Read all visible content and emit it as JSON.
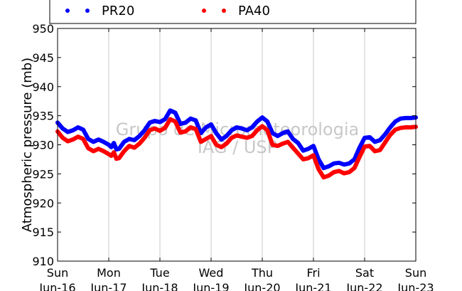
{
  "chart_data": {
    "type": "line",
    "title": "",
    "ylabel": "Atmospheric pressure (mb)",
    "xlabel": "",
    "ylim": [
      910,
      950
    ],
    "yticks": [
      910,
      915,
      920,
      925,
      930,
      935,
      940,
      945,
      950
    ],
    "xlim": [
      0,
      7
    ],
    "xtick_labels": [
      {
        "day": "Sun",
        "date": "Jun-16"
      },
      {
        "day": "Mon",
        "date": "Jun-17"
      },
      {
        "day": "Tue",
        "date": "Jun-18"
      },
      {
        "day": "Wed",
        "date": "Jun-19"
      },
      {
        "day": "Thu",
        "date": "Jun-20"
      },
      {
        "day": "Fri",
        "date": "Jun-21"
      },
      {
        "day": "Sat",
        "date": "Jun-22"
      },
      {
        "day": "Sun",
        "date": "Jun-23"
      }
    ],
    "grid": "vertical",
    "legend_position": "top",
    "watermark": [
      "Grupo de Micrometeorologia",
      "IAG / USP"
    ],
    "series": [
      {
        "name": "PR20",
        "color": "#0000ff",
        "x": [
          0.0,
          0.1,
          0.2,
          0.3,
          0.4,
          0.5,
          0.6,
          0.7,
          0.8,
          0.9,
          1.0,
          1.05,
          1.1,
          1.15,
          1.2,
          1.3,
          1.4,
          1.5,
          1.6,
          1.7,
          1.8,
          1.9,
          2.0,
          2.1,
          2.2,
          2.3,
          2.4,
          2.5,
          2.6,
          2.7,
          2.8,
          2.9,
          3.0,
          3.1,
          3.2,
          3.3,
          3.4,
          3.5,
          3.6,
          3.7,
          3.8,
          3.9,
          4.0,
          4.1,
          4.2,
          4.3,
          4.4,
          4.5,
          4.6,
          4.7,
          4.8,
          4.9,
          5.0,
          5.1,
          5.2,
          5.3,
          5.4,
          5.5,
          5.6,
          5.7,
          5.8,
          5.9,
          6.0,
          6.1,
          6.2,
          6.3,
          6.4,
          6.5,
          6.6,
          6.7,
          6.8,
          6.9,
          7.0
        ],
        "y": [
          933.8,
          932.8,
          932.2,
          932.5,
          933.0,
          932.6,
          931.0,
          930.5,
          930.9,
          930.5,
          930.0,
          929.6,
          930.3,
          929.2,
          929.3,
          930.5,
          931.0,
          930.8,
          931.5,
          932.5,
          933.8,
          934.1,
          933.9,
          934.4,
          935.9,
          935.5,
          933.6,
          933.8,
          934.5,
          934.2,
          932.0,
          933.0,
          933.5,
          932.0,
          930.9,
          931.5,
          932.5,
          933.0,
          932.8,
          932.5,
          933.0,
          934.0,
          934.7,
          934.0,
          932.0,
          931.5,
          932.0,
          932.3,
          931.0,
          930.3,
          929.0,
          929.3,
          929.8,
          927.5,
          926.0,
          926.3,
          926.8,
          926.9,
          926.6,
          926.8,
          927.5,
          929.5,
          931.2,
          931.3,
          930.5,
          930.8,
          931.8,
          933.0,
          934.0,
          934.5,
          934.6,
          934.6,
          934.7
        ]
      },
      {
        "name": "PA40",
        "color": "#ff0000",
        "x": [
          0.0,
          0.1,
          0.2,
          0.3,
          0.4,
          0.5,
          0.6,
          0.7,
          0.8,
          0.9,
          1.0,
          1.05,
          1.1,
          1.15,
          1.2,
          1.3,
          1.4,
          1.5,
          1.6,
          1.7,
          1.8,
          1.9,
          2.0,
          2.1,
          2.2,
          2.3,
          2.4,
          2.5,
          2.6,
          2.7,
          2.8,
          2.9,
          3.0,
          3.1,
          3.2,
          3.3,
          3.4,
          3.5,
          3.6,
          3.7,
          3.8,
          3.9,
          4.0,
          4.1,
          4.2,
          4.3,
          4.4,
          4.5,
          4.6,
          4.7,
          4.8,
          4.9,
          5.0,
          5.1,
          5.2,
          5.3,
          5.4,
          5.5,
          5.6,
          5.7,
          5.8,
          5.9,
          6.0,
          6.1,
          6.2,
          6.3,
          6.4,
          6.5,
          6.6,
          6.7,
          6.8,
          6.9,
          7.0
        ],
        "y": [
          932.3,
          931.2,
          930.6,
          930.9,
          931.4,
          931.0,
          929.4,
          928.9,
          929.3,
          928.9,
          928.4,
          928.1,
          928.7,
          927.6,
          927.7,
          928.9,
          929.8,
          929.5,
          930.2,
          931.2,
          932.5,
          932.8,
          932.4,
          932.9,
          934.4,
          934.0,
          932.1,
          932.3,
          933.0,
          932.7,
          930.5,
          931.0,
          931.5,
          930.0,
          929.6,
          930.2,
          931.2,
          931.6,
          931.4,
          931.2,
          931.5,
          932.5,
          933.2,
          932.5,
          930.0,
          929.8,
          930.2,
          930.5,
          929.5,
          928.5,
          927.5,
          927.7,
          928.2,
          925.8,
          924.4,
          924.7,
          925.3,
          925.5,
          925.1,
          925.3,
          926.0,
          927.9,
          929.7,
          929.8,
          928.9,
          929.1,
          930.4,
          931.7,
          932.6,
          932.9,
          933.0,
          933.0,
          933.1
        ]
      }
    ]
  }
}
